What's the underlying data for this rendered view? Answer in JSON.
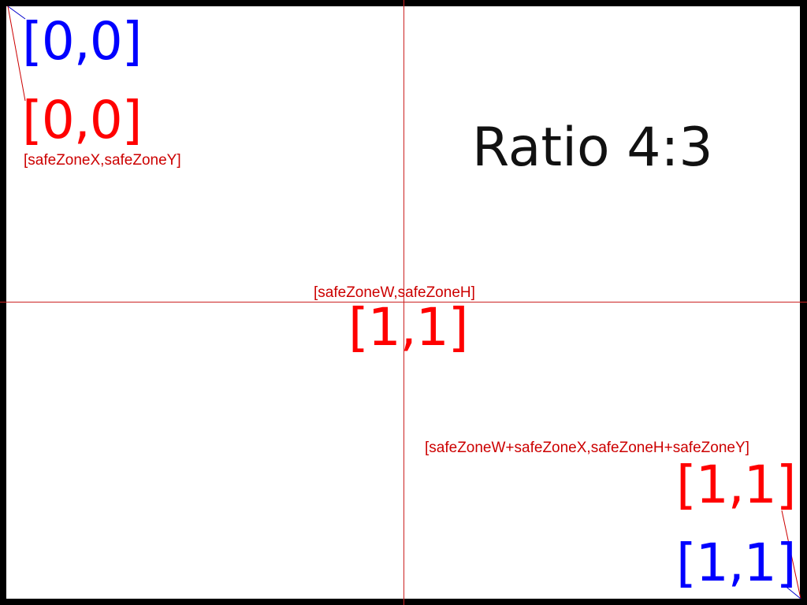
{
  "title": "Ratio 4:3",
  "colors": {
    "frame": "#000000",
    "background": "#ffffff",
    "screen_coords": "#0000ff",
    "safe_zone": "#ff0000",
    "title_text": "#111111"
  },
  "screen_corners": {
    "top_left": "[0,0]",
    "bottom_right": "[1,1]"
  },
  "safe_zone_corners": {
    "top_left": "[0,0]",
    "top_left_formula": "[safeZoneX,safeZoneY]",
    "size": "[1,1]",
    "size_formula": "[safeZoneW,safeZoneH]",
    "bottom_right": "[1,1]",
    "bottom_right_formula": "[safeZoneW+safeZoneX,safeZoneH+safeZoneY]"
  }
}
